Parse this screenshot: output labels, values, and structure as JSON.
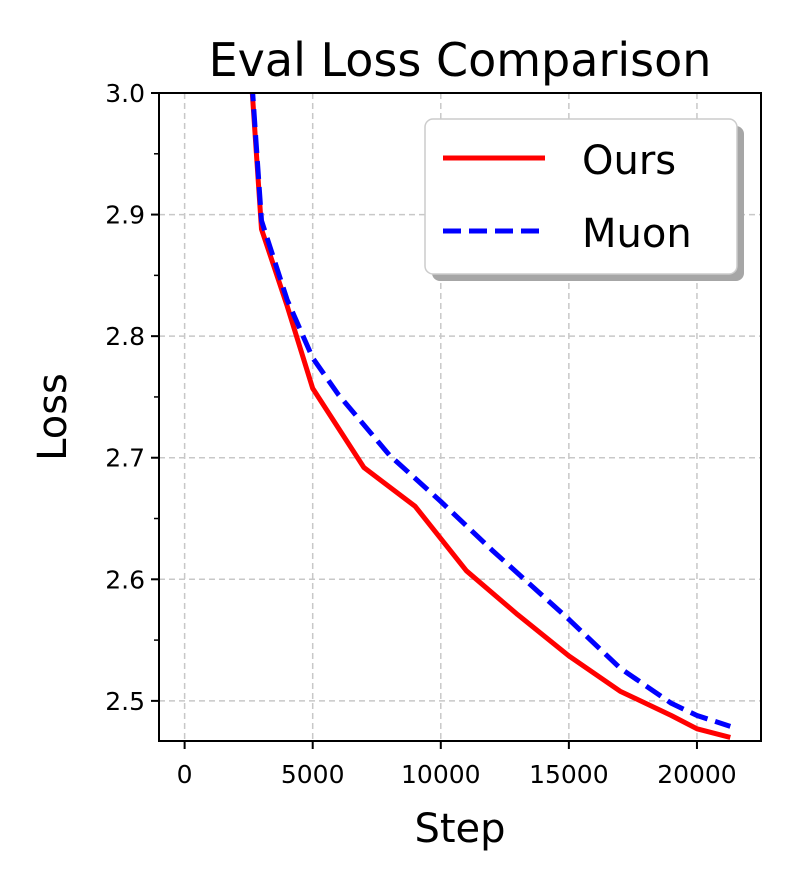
{
  "chart_data": {
    "type": "line",
    "title": "Eval Loss Comparison",
    "xlabel": "Step",
    "ylabel": "Loss",
    "xlim": [
      -1000,
      22500
    ],
    "ylim": [
      2.467,
      3.0
    ],
    "x_ticks": [
      0,
      5000,
      10000,
      15000,
      20000
    ],
    "x_tick_labels": [
      "0",
      "5000",
      "10000",
      "15000",
      "20000"
    ],
    "y_ticks": [
      2.5,
      2.6,
      2.7,
      2.8,
      2.9,
      3.0
    ],
    "y_tick_labels": [
      "2.5",
      "2.6",
      "2.7",
      "2.8",
      "2.9",
      "3.0"
    ],
    "y_minor_ticks": [
      2.55,
      2.65,
      2.75,
      2.85,
      2.95
    ],
    "grid": true,
    "legend_position": "top-right",
    "series": [
      {
        "name": "Ours",
        "color": "#ff0000",
        "style": "solid",
        "x": [
          2000,
          3000,
          4000,
          5000,
          7000,
          9000,
          11000,
          13000,
          15000,
          17000,
          19000,
          20000,
          21300
        ],
        "y": [
          3.2,
          2.888,
          2.825,
          2.757,
          2.692,
          2.66,
          2.607,
          2.571,
          2.537,
          2.508,
          2.488,
          2.477,
          2.47
        ]
      },
      {
        "name": "Muon",
        "color": "#0000ff",
        "style": "dashed",
        "x": [
          2000,
          3000,
          4000,
          5000,
          6000,
          8000,
          10000,
          12000,
          14000,
          15000,
          17000,
          19000,
          20000,
          21300
        ],
        "y": [
          3.2,
          2.895,
          2.83,
          2.782,
          2.752,
          2.702,
          2.664,
          2.624,
          2.586,
          2.567,
          2.527,
          2.498,
          2.488,
          2.479
        ]
      }
    ]
  }
}
